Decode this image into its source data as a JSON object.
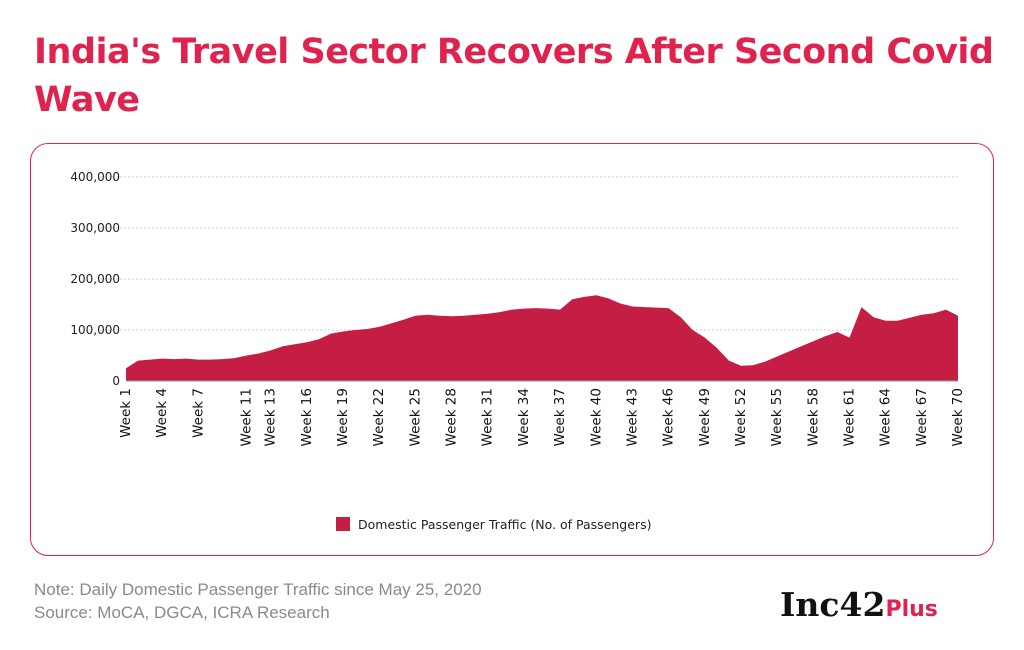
{
  "title": "India's Travel Sector Recovers After Second Covid Wave",
  "note": "Note: Daily Domestic Passenger Traffic since May 25, 2020",
  "source": "Source: MoCA, DGCA, ICRA Research",
  "logo": {
    "main": "Inc42",
    "suffix": "Plus"
  },
  "colors": {
    "title": "#e0234e",
    "series": "#c41e45",
    "border": "#e0234e"
  },
  "chart_data": {
    "type": "area",
    "title": "",
    "xlabel": "",
    "ylabel": "",
    "ylim": [
      0,
      400000
    ],
    "yticks": [
      "0",
      "100,000",
      "200,000",
      "300,000",
      "400,000"
    ],
    "ytick_values": [
      0,
      100000,
      200000,
      300000,
      400000
    ],
    "grid": true,
    "legend": "bottom-center",
    "xtick_labels": [
      "Week 1",
      "Week 4",
      "Week 7",
      "Week 11",
      "Week 13",
      "Week 16",
      "Week 19",
      "Week 22",
      "Week 25",
      "Week 28",
      "Week 31",
      "Week 34",
      "Week 37",
      "Week 40",
      "Week 43",
      "Week 46",
      "Week 49",
      "Week 52",
      "Week 55",
      "Week 58",
      "Week 61",
      "Week 64",
      "Week 67",
      "Week 70"
    ],
    "xtick_weeks": [
      1,
      4,
      7,
      11,
      13,
      16,
      19,
      22,
      25,
      28,
      31,
      34,
      37,
      40,
      43,
      46,
      49,
      52,
      55,
      58,
      61,
      64,
      67,
      70
    ],
    "series": [
      {
        "name": "Domestic Passenger Traffic (No. of Passengers)",
        "weeks": [
          1,
          2,
          3,
          4,
          5,
          6,
          7,
          8,
          9,
          10,
          11,
          12,
          13,
          14,
          15,
          16,
          17,
          18,
          19,
          20,
          21,
          22,
          23,
          24,
          25,
          26,
          27,
          28,
          29,
          30,
          31,
          32,
          33,
          34,
          35,
          36,
          37,
          38,
          39,
          40,
          41,
          42,
          43,
          44,
          45,
          46,
          47,
          48,
          49,
          50,
          51,
          52,
          53,
          54,
          55,
          56,
          57,
          58,
          59,
          60,
          61,
          62,
          63,
          64,
          65,
          66,
          67,
          68,
          69,
          70
        ],
        "values": [
          25000,
          40000,
          42000,
          44000,
          43000,
          44000,
          42000,
          42000,
          43000,
          45000,
          50000,
          54000,
          60000,
          68000,
          72000,
          76000,
          82000,
          93000,
          97000,
          100000,
          102000,
          106000,
          113000,
          120000,
          128000,
          130000,
          128000,
          127000,
          128000,
          130000,
          132000,
          135000,
          140000,
          142000,
          143000,
          142000,
          140000,
          160000,
          165000,
          168000,
          162000,
          152000,
          146000,
          145000,
          144000,
          143000,
          125000,
          100000,
          85000,
          65000,
          40000,
          30000,
          31000,
          38000,
          48000,
          58000,
          68000,
          78000,
          88000,
          96000,
          85000,
          145000,
          125000,
          118000,
          118000,
          124000,
          130000,
          133000,
          140000,
          128000
        ]
      }
    ]
  }
}
